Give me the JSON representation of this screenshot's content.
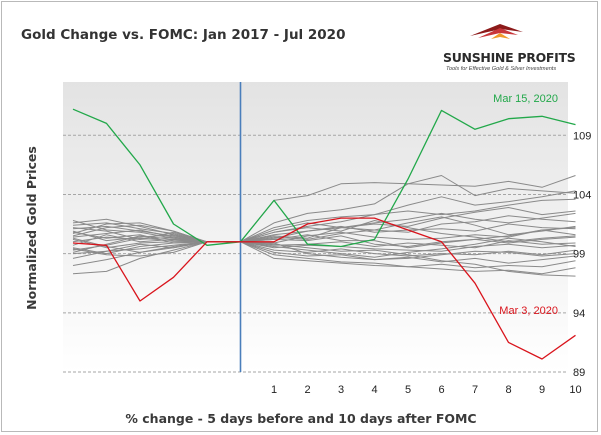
{
  "chart_data": {
    "type": "line",
    "title": "Gold Change vs. FOMC: Jan 2017 - Jul 2020",
    "xlabel": "% change - 5 days before and 10 days after FOMC",
    "ylabel": "Normalized Gold Prices",
    "x": [
      -5,
      -4,
      -3,
      -2,
      -1,
      0,
      1,
      2,
      3,
      4,
      5,
      6,
      7,
      8,
      9,
      10
    ],
    "x_tick_labels": [
      "1",
      "2",
      "3",
      "4",
      "5",
      "6",
      "7",
      "8",
      "9",
      "10"
    ],
    "y_ticks": [
      89,
      94,
      99,
      104,
      109
    ],
    "y_tick_labels": [
      "89",
      "94",
      "99",
      "104",
      "109"
    ],
    "ylim": [
      89,
      113.5
    ],
    "grid": "horizontal-dashed",
    "event_line_x": 0,
    "colors": {
      "event_line": "#4a7ebb",
      "others": "#8a8a8a",
      "highlight_green": "#22a84a",
      "highlight_red": "#d9141c",
      "plot_bg_top": "#e6e6e6",
      "plot_bg_bottom": "#ffffff"
    },
    "highlight_series": [
      {
        "name": "Mar 15, 2020",
        "color": "#22a84a",
        "values": [
          111.2,
          110.0,
          106.5,
          101.5,
          99.7,
          100.0,
          103.5,
          99.8,
          99.6,
          100.2,
          105.3,
          111.1,
          109.5,
          110.4,
          110.6,
          109.9
        ]
      },
      {
        "name": "Mar 3, 2020",
        "color": "#d9141c",
        "values": [
          99.9,
          99.7,
          95.0,
          97.0,
          100.0,
          100.0,
          100.0,
          101.5,
          102.0,
          102.0,
          101.0,
          100.0,
          96.5,
          91.5,
          90.1,
          92.1
        ]
      }
    ],
    "series": [
      {
        "values": [
          101.8,
          101.0,
          100.8,
          100.3,
          100.0,
          100.0,
          103.5,
          103.9,
          104.9,
          105.0,
          104.9,
          104.8,
          104.7,
          105.1,
          104.6,
          105.6
        ]
      },
      {
        "values": [
          101.1,
          101.3,
          100.9,
          100.5,
          100.0,
          100.0,
          101.6,
          102.4,
          102.7,
          103.2,
          104.9,
          105.6,
          103.9,
          104.5,
          104.3,
          104.1
        ]
      },
      {
        "values": [
          100.4,
          100.7,
          101.0,
          100.4,
          100.0,
          100.0,
          101.2,
          101.8,
          102.1,
          102.3,
          103.1,
          103.8,
          103.1,
          103.4,
          103.8,
          104.3
        ]
      },
      {
        "values": [
          99.3,
          99.7,
          100.3,
          100.1,
          100.0,
          100.0,
          100.8,
          101.3,
          101.7,
          102.3,
          102.6,
          102.3,
          102.6,
          103.1,
          103.5,
          103.6
        ]
      },
      {
        "values": [
          100.8,
          100.3,
          100.6,
          99.9,
          100.0,
          100.0,
          100.3,
          100.9,
          101.2,
          101.5,
          101.3,
          102.0,
          102.5,
          102.9,
          102.3,
          102.6
        ]
      },
      {
        "values": [
          101.4,
          101.6,
          101.1,
          100.7,
          100.0,
          100.0,
          101.0,
          101.6,
          101.2,
          101.0,
          100.8,
          101.5,
          101.7,
          102.2,
          101.9,
          101.7
        ]
      },
      {
        "values": [
          98.6,
          99.2,
          99.8,
          99.5,
          100.0,
          100.0,
          100.6,
          100.9,
          101.3,
          100.8,
          101.0,
          101.1,
          100.9,
          101.5,
          101.2,
          101.1
        ]
      },
      {
        "values": [
          100.9,
          100.1,
          100.4,
          100.6,
          100.0,
          100.0,
          99.9,
          100.5,
          100.8,
          100.4,
          100.2,
          100.3,
          100.6,
          100.4,
          101.0,
          100.6
        ]
      },
      {
        "values": [
          99.7,
          100.6,
          100.0,
          100.2,
          100.0,
          100.0,
          100.2,
          100.1,
          100.5,
          99.8,
          99.6,
          100.0,
          100.2,
          99.9,
          100.2,
          100.4
        ]
      },
      {
        "values": [
          101.2,
          100.9,
          100.2,
          100.8,
          100.0,
          100.0,
          99.7,
          99.8,
          100.0,
          99.6,
          99.9,
          99.7,
          99.5,
          100.1,
          99.8,
          99.9
        ]
      },
      {
        "values": [
          100.2,
          99.5,
          99.9,
          100.0,
          100.0,
          100.0,
          99.5,
          99.7,
          99.6,
          99.4,
          99.3,
          99.2,
          99.6,
          99.8,
          99.5,
          99.7
        ]
      },
      {
        "values": [
          99.1,
          99.8,
          100.5,
          100.2,
          100.0,
          100.0,
          99.3,
          99.1,
          99.4,
          99.0,
          98.8,
          99.0,
          98.9,
          99.2,
          98.9,
          99.3
        ]
      },
      {
        "values": [
          100.5,
          101.2,
          101.4,
          100.9,
          100.0,
          100.0,
          99.1,
          98.8,
          98.9,
          98.5,
          98.7,
          98.3,
          98.6,
          98.2,
          98.5,
          98.8
        ]
      },
      {
        "values": [
          99.5,
          99.0,
          99.6,
          99.9,
          100.0,
          100.0,
          98.9,
          98.6,
          98.3,
          98.2,
          97.9,
          98.1,
          97.8,
          98.0,
          97.9,
          98.4
        ]
      },
      {
        "values": [
          98.0,
          98.5,
          99.1,
          99.5,
          100.0,
          100.0,
          98.6,
          98.4,
          98.2,
          98.0,
          97.9,
          97.7,
          97.5,
          97.6,
          97.3,
          97.8
        ]
      },
      {
        "values": [
          97.3,
          97.5,
          98.6,
          99.3,
          100.0,
          100.0,
          99.9,
          99.0,
          98.7,
          98.5,
          98.6,
          98.9,
          99.2,
          99.1,
          98.8,
          99.0
        ]
      },
      {
        "values": [
          101.6,
          101.9,
          101.3,
          100.6,
          100.0,
          100.0,
          100.8,
          101.2,
          100.9,
          101.8,
          101.2,
          100.7,
          100.4,
          100.0,
          100.3,
          100.5
        ]
      },
      {
        "values": [
          100.0,
          100.4,
          100.2,
          100.4,
          100.0,
          100.0,
          100.4,
          100.2,
          100.7,
          101.0,
          101.6,
          102.1,
          101.4,
          100.6,
          100.9,
          101.3
        ]
      },
      {
        "values": [
          99.0,
          99.2,
          99.4,
          99.7,
          100.0,
          100.0,
          100.2,
          100.6,
          100.1,
          100.1,
          99.5,
          99.9,
          100.2,
          100.5,
          101.0,
          101.2
        ]
      },
      {
        "values": [
          100.7,
          101.5,
          101.6,
          100.9,
          100.0,
          100.0,
          100.5,
          100.3,
          101.2,
          101.6,
          101.9,
          102.4,
          101.9,
          101.6,
          102.0,
          102.4
        ]
      },
      {
        "values": [
          99.4,
          98.9,
          98.8,
          99.1,
          100.0,
          100.0,
          99.6,
          99.3,
          99.0,
          98.7,
          99.1,
          99.4,
          99.8,
          100.3,
          100.0,
          99.6
        ]
      },
      {
        "values": [
          100.3,
          99.6,
          99.1,
          99.6,
          100.0,
          100.0,
          99.8,
          99.5,
          99.2,
          99.3,
          98.9,
          98.4,
          98.1,
          97.5,
          97.2,
          97.1
        ]
      }
    ]
  },
  "logo": {
    "brand": "SUNSHINE PROFITS",
    "tagline": "Tools for Effective Gold & Silver Investments"
  }
}
